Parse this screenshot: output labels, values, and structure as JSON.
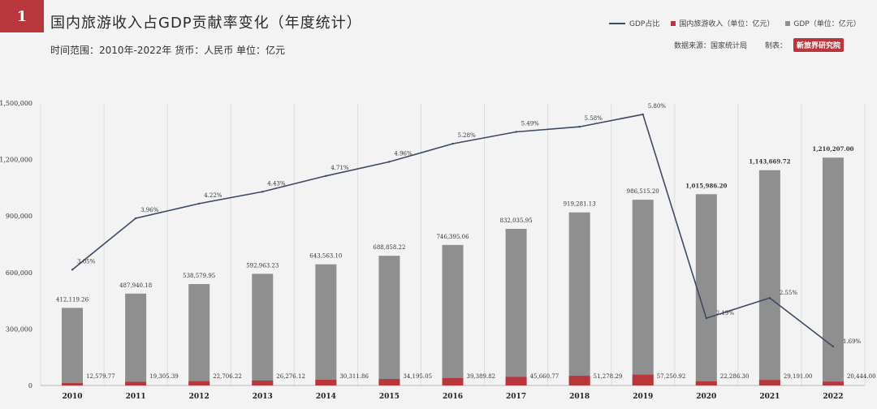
{
  "page_number": "1",
  "title": "国内旅游收入占GDP贡献率变化（年度统计）",
  "subtitle": "时间范围：2010年-2022年 货币：人民币 单位：亿元",
  "legend": {
    "ratio": "GDP占比",
    "tourism": "国内旅游收入（单位：亿元）",
    "gdp": "GDP（单位：亿元）"
  },
  "source_text": "数据来源：国家统计局",
  "maker_text": "制表：",
  "logo_text": "新旅界研究院",
  "colors": {
    "gdp_bar": "#8f8f8f",
    "tourism_bar": "#b8373c",
    "ratio_line": "#3d4a66",
    "highlight_blue": "#2e4a8a",
    "highlight_red": "#c0282d"
  },
  "chart_data": {
    "type": "bar",
    "categories": [
      "2010",
      "2011",
      "2012",
      "2013",
      "2014",
      "2015",
      "2016",
      "2017",
      "2018",
      "2019",
      "2020",
      "2021",
      "2022"
    ],
    "series": [
      {
        "name": "GDP（单位：亿元）",
        "values": [
          412119.26,
          487940.18,
          538579.95,
          592963.23,
          643563.1,
          688858.22,
          746395.06,
          832035.95,
          919281.13,
          986515.2,
          1015986.2,
          1143669.72,
          1210207.0
        ],
        "labels": [
          "412,119.26",
          "487,940.18",
          "538,579.95",
          "592,963.23",
          "643,563.10",
          "688,858.22",
          "746,395.06",
          "832,035.95",
          "919,281.13",
          "986,515.20",
          "1,015,986.20",
          "1,143,669.72",
          "1,210,207.00"
        ]
      },
      {
        "name": "国内旅游收入（单位：亿元）",
        "values": [
          12579.77,
          19305.39,
          22706.22,
          26276.12,
          30311.86,
          34195.05,
          39389.82,
          45660.77,
          51278.29,
          57250.92,
          22286.3,
          29191.0,
          20444.0
        ],
        "labels": [
          "12,579.77",
          "19,305.39",
          "22,706.22",
          "26,276.12",
          "30,311.86",
          "34,195.05",
          "39,389.82",
          "45,660.77",
          "51,278.29",
          "57,250.92",
          "22,286.30",
          "29,191.00",
          "20,444.00"
        ]
      },
      {
        "name": "GDP占比",
        "values": [
          3.05,
          3.96,
          4.22,
          4.43,
          4.71,
          4.96,
          5.28,
          5.49,
          5.58,
          5.8,
          2.19,
          2.55,
          1.69
        ],
        "labels": [
          "3.05%",
          "3.96%",
          "4.22%",
          "4.43%",
          "4.71%",
          "4.96%",
          "5.28%",
          "5.49%",
          "5.58%",
          "5.80%",
          "2.19%",
          "2.55%",
          "1.69%"
        ]
      }
    ],
    "y_ticks": [
      "0",
      "300,000",
      "600,000",
      "900,000",
      "1,200,000",
      "1,500,000"
    ],
    "ylim": [
      0,
      1500000
    ],
    "ratio_axis_range": [
      1.0,
      6.0
    ],
    "grid": "vertical",
    "legend_position": "top-right"
  }
}
